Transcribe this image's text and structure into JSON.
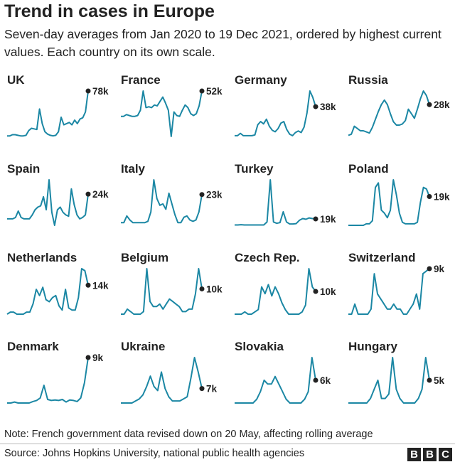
{
  "title": "Trend in cases in Europe",
  "subtitle": "Seven-day averages from Jan 2020 to 19 Dec 2021, ordered by highest current values. Each country on its own scale.",
  "note": "Note: French government data revised down on 20 May, affecting rolling average",
  "source": "Source: Johns Hopkins University, national public health agencies",
  "logo": [
    "B",
    "B",
    "C"
  ],
  "colors": {
    "line": "#1b87a4",
    "dot": "#222222"
  },
  "chart_data": {
    "type": "line",
    "layout": "small multiples, 4 columns, each country on its own scale",
    "x_range": [
      "Jan 2020",
      "19 Dec 2021"
    ],
    "units": "thousands of cases (seven-day average)",
    "panels": [
      {
        "name": "UK",
        "label": "78k",
        "values": [
          1,
          1,
          3,
          3,
          2,
          1,
          1,
          2,
          10,
          14,
          13,
          12,
          47,
          22,
          8,
          4,
          2,
          1,
          2,
          8,
          33,
          20,
          22,
          24,
          20,
          28,
          22,
          30,
          32,
          42,
          78
        ]
      },
      {
        "name": "France",
        "label": "52k",
        "values": [
          23,
          23,
          25,
          24,
          23,
          23,
          24,
          30,
          52,
          33,
          34,
          33,
          36,
          35,
          40,
          45,
          38,
          30,
          0,
          28,
          24,
          23,
          30,
          36,
          33,
          26,
          24,
          26,
          35,
          52
        ]
      },
      {
        "name": "Germany",
        "label": "38k",
        "values": [
          1,
          1,
          4,
          1,
          1,
          1,
          1,
          2,
          15,
          19,
          16,
          22,
          13,
          8,
          6,
          10,
          17,
          19,
          9,
          3,
          1,
          5,
          7,
          5,
          12,
          30,
          58,
          50,
          38
        ]
      },
      {
        "name": "Russia",
        "label": "28k",
        "values": [
          1,
          2,
          9,
          7,
          5,
          5,
          4,
          3,
          8,
          15,
          22,
          28,
          32,
          28,
          20,
          13,
          10,
          10,
          11,
          14,
          24,
          20,
          16,
          24,
          33,
          40,
          36,
          28
        ]
      },
      {
        "name": "Spain",
        "label": "24k",
        "values": [
          5,
          5,
          5,
          6,
          11,
          6,
          5,
          5,
          5,
          8,
          12,
          14,
          15,
          22,
          12,
          35,
          10,
          0,
          12,
          14,
          10,
          8,
          7,
          28,
          16,
          8,
          5,
          6,
          8,
          24
        ]
      },
      {
        "name": "Italy",
        "label": "23k",
        "values": [
          2,
          2,
          7,
          4,
          2,
          2,
          2,
          2,
          2,
          3,
          10,
          34,
          20,
          15,
          16,
          12,
          24,
          16,
          8,
          2,
          2,
          6,
          7,
          4,
          3,
          4,
          10,
          23
        ]
      },
      {
        "name": "Turkey",
        "label": "19k",
        "values": [
          1,
          1,
          2,
          1,
          1,
          1,
          1,
          1,
          1,
          1,
          10,
          135,
          10,
          6,
          8,
          40,
          10,
          4,
          4,
          5,
          15,
          20,
          18,
          22,
          20,
          19
        ]
      },
      {
        "name": "Poland",
        "label": "19k",
        "values": [
          0,
          0,
          0,
          0,
          0,
          0,
          1,
          1,
          3,
          25,
          28,
          10,
          8,
          5,
          10,
          30,
          20,
          8,
          2,
          1,
          1,
          1,
          1,
          2,
          15,
          25,
          24,
          19
        ]
      },
      {
        "name": "Netherlands",
        "label": "14k",
        "values": [
          0,
          1,
          1,
          0,
          0,
          0,
          1,
          1,
          5,
          12,
          9,
          13,
          7,
          6,
          8,
          9,
          4,
          2,
          12,
          3,
          2,
          2,
          8,
          22,
          21,
          14
        ]
      },
      {
        "name": "Belgium",
        "label": "10k",
        "values": [
          0,
          0,
          2,
          1,
          0,
          0,
          0,
          1,
          18,
          5,
          3,
          3,
          4,
          2,
          4,
          6,
          5,
          4,
          3,
          1,
          1,
          2,
          2,
          8,
          18,
          10
        ]
      },
      {
        "name": "Czech Rep.",
        "label": "10k",
        "values": [
          0,
          0,
          0,
          1,
          0,
          0,
          1,
          2,
          12,
          9,
          13,
          8,
          12,
          9,
          5,
          2,
          0,
          0,
          0,
          0,
          1,
          4,
          20,
          12,
          10
        ]
      },
      {
        "name": "Switzerland",
        "label": "9k",
        "values": [
          0,
          0,
          2,
          0,
          0,
          0,
          0,
          1,
          8,
          4,
          3,
          2,
          1,
          1,
          2,
          1,
          1,
          0,
          0,
          1,
          2,
          4,
          1,
          8,
          8.5,
          9
        ]
      },
      {
        "name": "Denmark",
        "label": "9k",
        "values": [
          0,
          0,
          0.2,
          0,
          0,
          0,
          0,
          0.3,
          0.5,
          1,
          3.5,
          0.7,
          0.5,
          0.6,
          0.5,
          0.7,
          0.2,
          0.6,
          0.5,
          0.3,
          1,
          4,
          9
        ]
      },
      {
        "name": "Ukraine",
        "label": "7k",
        "values": [
          0,
          0,
          0,
          0,
          1,
          2,
          4,
          8,
          13,
          8,
          6,
          15,
          7,
          3,
          1,
          1,
          1,
          2,
          3,
          12,
          22,
          15,
          7
        ]
      },
      {
        "name": "Slovakia",
        "label": "6k",
        "values": [
          0,
          0,
          0,
          0,
          0,
          0,
          1,
          3,
          6,
          5,
          5,
          7,
          5,
          3,
          1,
          0,
          0,
          0,
          0,
          1,
          3,
          12,
          6
        ]
      },
      {
        "name": "Hungary",
        "label": "5k",
        "values": [
          0,
          0,
          0,
          0,
          0,
          0,
          1,
          3,
          5,
          1,
          1,
          2,
          10,
          3,
          1,
          0,
          0,
          0,
          0,
          1,
          3,
          10,
          5
        ]
      }
    ]
  }
}
